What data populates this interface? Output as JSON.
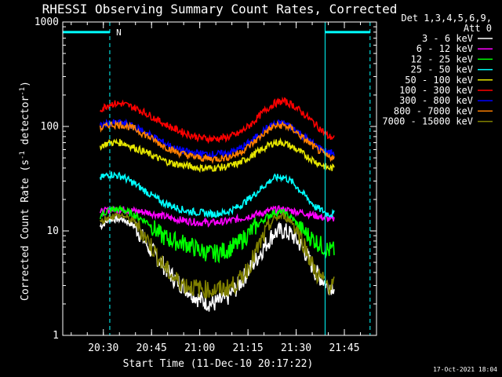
{
  "chart_data": {
    "type": "line",
    "title": "RHESSI Observing Summary Count Rates, Corrected",
    "xlabel": "Start Time (11-Dec-10 20:17:22)",
    "ylabel_main": "Corrected Count Rate (s",
    "ylabel_sup1": "-1",
    "ylabel_mid": " detector",
    "ylabel_sup2": "-1",
    "ylabel_end": ")",
    "yscale": "log",
    "ylim": [
      1,
      1000
    ],
    "xlim": [
      "20:17:22",
      "21:55:00"
    ],
    "ytick_labels": [
      "1",
      "10",
      "100",
      "1000"
    ],
    "xtick_labels": [
      "20:30",
      "20:45",
      "21:00",
      "21:15",
      "21:30",
      "21:45"
    ],
    "grid": false,
    "legend": {
      "placement": "top-right",
      "header": [
        "Det 1,3,4,5,6,9,",
        "Att 0"
      ]
    },
    "flags": {
      "night_label": "N",
      "color": "#00ffff",
      "level": 800
    },
    "series": [
      {
        "name": "3 - 6 keV",
        "color": "#ffffff",
        "x": [
          "20:29",
          "20:32",
          "20:36",
          "20:40",
          "20:44",
          "20:48",
          "20:52",
          "20:56",
          "21:00",
          "21:04",
          "21:08",
          "21:12",
          "21:16",
          "21:20",
          "21:23",
          "21:26",
          "21:29",
          "21:32",
          "21:36",
          "21:40",
          "21:42"
        ],
        "y": [
          11,
          13,
          13,
          11,
          7,
          5,
          3.5,
          2.8,
          2.2,
          2,
          2.2,
          3,
          4.5,
          7,
          9.5,
          10,
          9,
          7,
          4,
          3,
          3
        ]
      },
      {
        "name": "6 - 12 keV",
        "color": "#ff00ff",
        "x": [
          "20:29",
          "20:32",
          "20:36",
          "20:40",
          "20:44",
          "20:48",
          "20:52",
          "20:56",
          "21:00",
          "21:04",
          "21:08",
          "21:12",
          "21:16",
          "21:20",
          "21:23",
          "21:26",
          "21:29",
          "21:32",
          "21:36",
          "21:40",
          "21:42"
        ],
        "y": [
          15,
          16,
          16,
          15.5,
          15,
          14,
          13,
          12.5,
          12,
          12,
          12.3,
          13,
          14,
          15,
          16,
          16,
          15.5,
          15,
          14,
          13,
          13
        ]
      },
      {
        "name": "12 - 25 keV",
        "color": "#00ff00",
        "x": [
          "20:29",
          "20:32",
          "20:36",
          "20:40",
          "20:44",
          "20:48",
          "20:52",
          "20:56",
          "21:00",
          "21:04",
          "21:08",
          "21:12",
          "21:16",
          "21:20",
          "21:23",
          "21:26",
          "21:29",
          "21:32",
          "21:36",
          "21:40",
          "21:42"
        ],
        "y": [
          14,
          16,
          16,
          14,
          12,
          9,
          8,
          7.5,
          6.5,
          6,
          6.5,
          7.5,
          10,
          13,
          15,
          15,
          13,
          10,
          8,
          6.5,
          6.5
        ]
      },
      {
        "name": "25 - 50 keV",
        "color": "#00ffff",
        "x": [
          "20:29",
          "20:32",
          "20:36",
          "20:40",
          "20:44",
          "20:48",
          "20:52",
          "20:56",
          "21:00",
          "21:04",
          "21:08",
          "21:12",
          "21:16",
          "21:20",
          "21:23",
          "21:26",
          "21:29",
          "21:32",
          "21:36",
          "21:40",
          "21:42"
        ],
        "y": [
          32,
          35,
          33,
          28,
          23,
          19,
          17,
          15.5,
          15,
          14.5,
          15,
          17,
          21,
          27,
          32,
          33,
          29,
          23,
          17,
          14.5,
          14.5
        ]
      },
      {
        "name": "50 - 100 keV",
        "color": "#e6e600",
        "x": [
          "20:29",
          "20:32",
          "20:36",
          "20:40",
          "20:44",
          "20:48",
          "20:52",
          "20:56",
          "21:00",
          "21:04",
          "21:08",
          "21:12",
          "21:16",
          "21:20",
          "21:23",
          "21:26",
          "21:29",
          "21:32",
          "21:36",
          "21:40",
          "21:42"
        ],
        "y": [
          65,
          70,
          70,
          62,
          55,
          48,
          44,
          42,
          40,
          40,
          41,
          44,
          52,
          62,
          70,
          70,
          63,
          55,
          46,
          40,
          40
        ]
      },
      {
        "name": "100 - 300 keV",
        "color": "#ff0000",
        "x": [
          "20:29",
          "20:32",
          "20:36",
          "20:40",
          "20:44",
          "20:48",
          "20:52",
          "20:56",
          "21:00",
          "21:04",
          "21:08",
          "21:12",
          "21:16",
          "21:20",
          "21:23",
          "21:26",
          "21:29",
          "21:32",
          "21:36",
          "21:40",
          "21:42"
        ],
        "y": [
          145,
          165,
          165,
          150,
          130,
          110,
          95,
          85,
          78,
          76,
          78,
          85,
          105,
          140,
          165,
          175,
          160,
          135,
          105,
          80,
          78
        ]
      },
      {
        "name": "300 - 800 keV",
        "color": "#0000ff",
        "x": [
          "20:29",
          "20:32",
          "20:36",
          "20:40",
          "20:44",
          "20:48",
          "20:52",
          "20:56",
          "21:00",
          "21:04",
          "21:08",
          "21:12",
          "21:16",
          "21:20",
          "21:23",
          "21:26",
          "21:29",
          "21:32",
          "21:36",
          "21:40",
          "21:42"
        ],
        "y": [
          100,
          108,
          108,
          98,
          85,
          72,
          62,
          57,
          55,
          54,
          55,
          60,
          72,
          92,
          105,
          108,
          98,
          82,
          66,
          56,
          56
        ]
      },
      {
        "name": "800 - 7000 keV",
        "color": "#ff8000",
        "x": [
          "20:29",
          "20:32",
          "20:36",
          "20:40",
          "20:44",
          "20:48",
          "20:52",
          "20:56",
          "21:00",
          "21:04",
          "21:08",
          "21:12",
          "21:16",
          "21:20",
          "21:23",
          "21:26",
          "21:29",
          "21:32",
          "21:36",
          "21:40",
          "21:42"
        ],
        "y": [
          95,
          104,
          104,
          94,
          80,
          67,
          58,
          53,
          50,
          49,
          50,
          55,
          67,
          86,
          100,
          103,
          94,
          78,
          62,
          51,
          51
        ]
      },
      {
        "name": "7000 - 15000 keV",
        "color": "#808000",
        "x": [
          "20:29",
          "20:32",
          "20:36",
          "20:40",
          "20:44",
          "20:48",
          "20:52",
          "20:56",
          "21:00",
          "21:04",
          "21:08",
          "21:12",
          "21:16",
          "21:20",
          "21:23",
          "21:26",
          "21:29",
          "21:32",
          "21:36",
          "21:40",
          "21:42"
        ],
        "y": [
          12,
          14,
          14,
          12,
          8,
          5,
          3.5,
          3,
          2.8,
          2.7,
          2.8,
          3.2,
          5,
          9,
          13,
          14,
          12,
          8,
          4,
          3,
          3
        ]
      }
    ]
  },
  "footer": {
    "timestamp": "17-Oct-2021 18:04"
  }
}
